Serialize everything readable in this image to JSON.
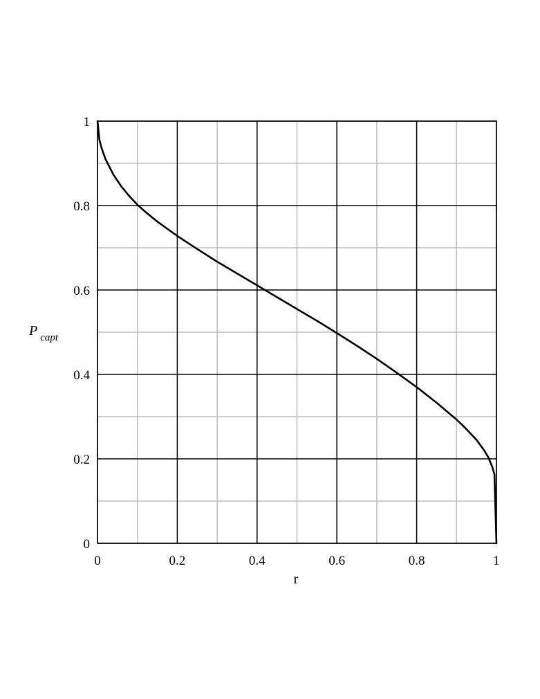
{
  "chart_data": {
    "type": "line",
    "title": "",
    "xlabel": "r",
    "ylabel": {
      "main": "P",
      "subscript": "capt"
    },
    "xlim": [
      0,
      1
    ],
    "ylim": [
      0,
      1
    ],
    "x_ticks": [
      "0",
      "0.2",
      "0.4",
      "0.6",
      "0.8",
      "1"
    ],
    "y_ticks": [
      "0",
      "0.2",
      "0.4",
      "0.6",
      "0.8",
      "1"
    ],
    "grid": {
      "major": true,
      "minor": true,
      "major_color": "#000000",
      "minor_color": "#bdbdbd"
    },
    "series": [
      {
        "color": "#000000",
        "x": [
          0,
          0.005,
          0.01,
          0.02,
          0.04,
          0.06,
          0.08,
          0.1,
          0.12,
          0.15,
          0.2,
          0.25,
          0.3,
          0.35,
          0.4,
          0.45,
          0.5,
          0.55,
          0.6,
          0.65,
          0.7,
          0.75,
          0.8,
          0.85,
          0.88,
          0.9,
          0.92,
          0.95,
          0.97,
          0.98,
          0.99,
          0.995,
          1
        ],
        "y": [
          1,
          0.955,
          0.937,
          0.91,
          0.873,
          0.845,
          0.822,
          0.802,
          0.785,
          0.762,
          0.728,
          0.697,
          0.667,
          0.639,
          0.611,
          0.583,
          0.555,
          0.527,
          0.498,
          0.468,
          0.437,
          0.404,
          0.37,
          0.333,
          0.309,
          0.293,
          0.275,
          0.245,
          0.219,
          0.203,
          0.18,
          0.163,
          0
        ]
      }
    ]
  }
}
